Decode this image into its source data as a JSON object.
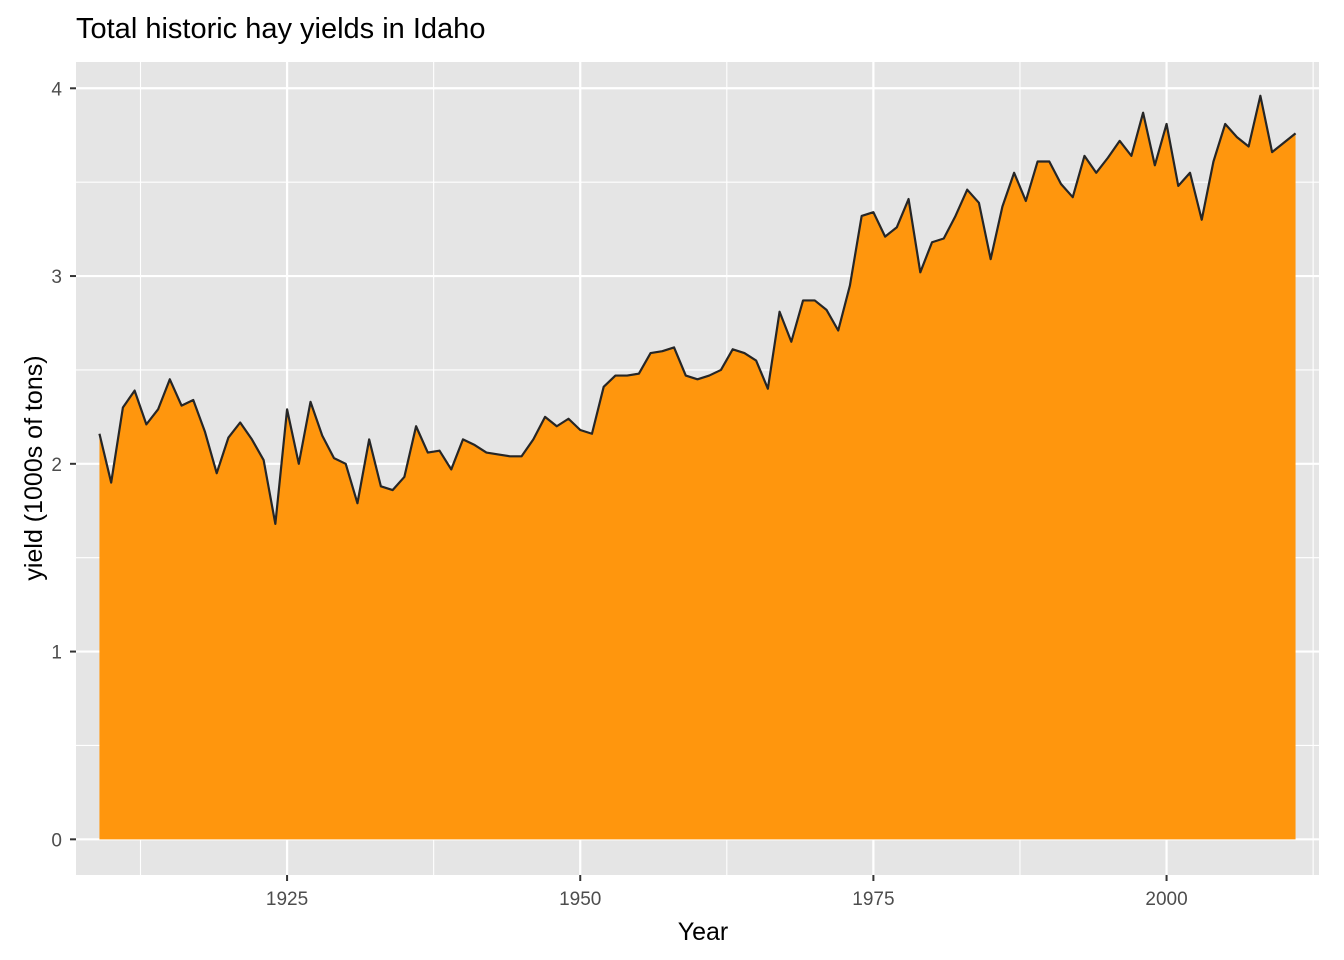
{
  "chart_data": {
    "type": "area",
    "title": "Total historic hay yields in Idaho",
    "xlabel": "Year",
    "ylabel": "yield (1000s of tons)",
    "xlim": [
      1907,
      2013
    ],
    "ylim": [
      -0.19,
      4.14
    ],
    "x_ticks": [
      1925,
      1950,
      1975,
      2000
    ],
    "x_tick_labels": [
      "1925",
      "1950",
      "1975",
      "2000"
    ],
    "y_ticks": [
      0,
      1,
      2,
      3,
      4
    ],
    "y_tick_labels": [
      "0",
      "1",
      "2",
      "3",
      "4"
    ],
    "grid": true,
    "legend": "none",
    "colors": {
      "panel_background": "#E5E5E5",
      "grid": "#FFFFFF",
      "fill": "#FF960D",
      "line": "#262626"
    },
    "x": [
      1909,
      1910,
      1911,
      1912,
      1913,
      1914,
      1915,
      1916,
      1917,
      1918,
      1919,
      1920,
      1921,
      1922,
      1923,
      1924,
      1925,
      1926,
      1927,
      1928,
      1929,
      1930,
      1931,
      1932,
      1933,
      1934,
      1935,
      1936,
      1937,
      1938,
      1939,
      1940,
      1941,
      1942,
      1943,
      1944,
      1945,
      1946,
      1947,
      1948,
      1949,
      1950,
      1951,
      1952,
      1953,
      1954,
      1955,
      1956,
      1957,
      1958,
      1959,
      1960,
      1961,
      1962,
      1963,
      1964,
      1965,
      1966,
      1967,
      1968,
      1969,
      1970,
      1971,
      1972,
      1973,
      1974,
      1975,
      1976,
      1977,
      1978,
      1979,
      1980,
      1981,
      1982,
      1983,
      1984,
      1985,
      1986,
      1987,
      1988,
      1989,
      1990,
      1991,
      1992,
      1993,
      1994,
      1995,
      1996,
      1997,
      1998,
      1999,
      2000,
      2001,
      2002,
      2003,
      2004,
      2005,
      2006,
      2007,
      2008,
      2009,
      2010,
      2011
    ],
    "y": [
      2.16,
      1.9,
      2.3,
      2.39,
      2.21,
      2.29,
      2.45,
      2.31,
      2.34,
      2.17,
      1.95,
      2.14,
      2.22,
      2.13,
      2.02,
      1.68,
      2.29,
      2.0,
      2.33,
      2.15,
      2.03,
      2.0,
      1.79,
      2.13,
      1.88,
      1.86,
      1.93,
      2.2,
      2.06,
      2.07,
      1.97,
      2.13,
      2.1,
      2.06,
      2.05,
      2.04,
      2.04,
      2.13,
      2.25,
      2.2,
      2.24,
      2.18,
      2.16,
      2.41,
      2.47,
      2.47,
      2.48,
      2.59,
      2.6,
      2.62,
      2.47,
      2.45,
      2.47,
      2.5,
      2.61,
      2.59,
      2.55,
      2.4,
      2.81,
      2.65,
      2.87,
      2.87,
      2.82,
      2.71,
      2.95,
      3.32,
      3.34,
      3.21,
      3.26,
      3.41,
      3.02,
      3.18,
      3.2,
      3.32,
      3.46,
      3.39,
      3.09,
      3.37,
      3.55,
      3.4,
      3.61,
      3.61,
      3.49,
      3.42,
      3.64,
      3.55,
      3.63,
      3.72,
      3.64,
      3.87,
      3.59,
      3.81,
      3.48,
      3.55,
      3.3,
      3.61,
      3.81,
      3.74,
      3.69,
      3.96,
      3.66,
      3.71,
      3.76
    ]
  }
}
